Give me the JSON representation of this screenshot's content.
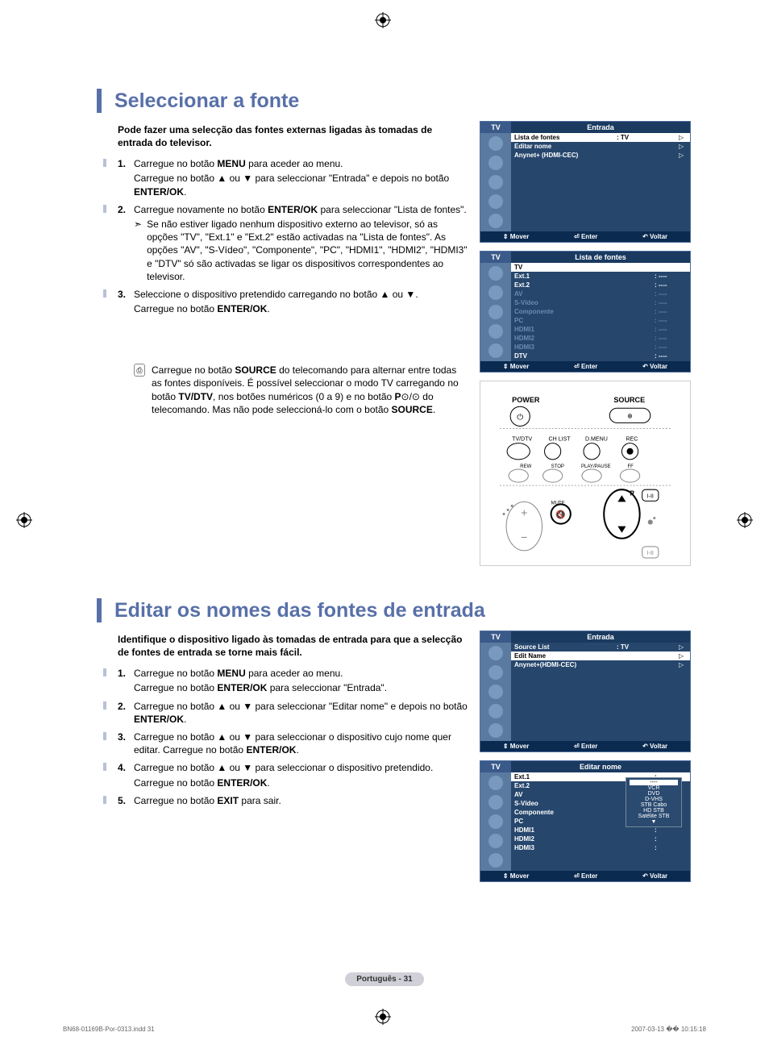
{
  "colors": {
    "heading": "#5870a8",
    "osd_bg": "#26466c",
    "osd_bar": "#1a3a60",
    "sidebar": "#5a7aa0"
  },
  "section1": {
    "title": "Seleccionar a fonte",
    "intro": "Pode fazer uma selecção das fontes externas ligadas às tomadas de entrada do televisor.",
    "steps": [
      {
        "n": "1.",
        "lines": [
          "Carregue no botão <b>MENU</b> para aceder ao menu.",
          "Carregue no botão ▲ ou ▼ para seleccionar \"Entrada\" e depois no botão <b>ENTER/OK</b>."
        ]
      },
      {
        "n": "2.",
        "lines": [
          "Carregue novamente no botão <b>ENTER/OK</b> para seleccionar \"Lista de fontes\"."
        ],
        "sub": "Se não estiver ligado nenhum dispositivo externo ao televisor, só as opções \"TV\", \"Ext.1\" e \"Ext.2\" estão activadas na \"Lista de fontes\". As opções \"AV\", \"S-Vídeo\", \"Componente\", \"PC\", \"HDMI1\", \"HDMI2\", \"HDMI3\" e \"DTV\" só são activadas se ligar os dispositivos correspondentes ao televisor."
      },
      {
        "n": "3.",
        "lines": [
          "Seleccione o dispositivo pretendido carregando no botão ▲ ou ▼.",
          "Carregue no botão <b>ENTER/OK</b>."
        ]
      }
    ],
    "tip": "Carregue no botão <b>SOURCE</b> do telecomando para alternar entre todas as fontes disponíveis. É possível seleccionar o modo TV carregando no botão <b>TV/DTV</b>, nos botões numéricos (0 a 9) e no botão <b>P</b>⊙/⊙ do telecomando. Mas não pode seleccioná-lo com o botão <b>SOURCE</b>."
  },
  "section2": {
    "title": "Editar os nomes das fontes de entrada",
    "intro": "Identifique o dispositivo ligado às tomadas de entrada para que a selecção de fontes de entrada se torne mais fácil.",
    "steps": [
      {
        "n": "1.",
        "lines": [
          "Carregue no botão <b>MENU</b> para aceder ao menu.",
          "Carregue no botão <b>ENTER/OK</b> para seleccionar \"Entrada\"."
        ]
      },
      {
        "n": "2.",
        "lines": [
          "Carregue no botão ▲ ou ▼ para seleccionar \"Editar nome\" e depois no botão <b>ENTER/OK</b>."
        ]
      },
      {
        "n": "3.",
        "lines": [
          "Carregue no botão ▲ ou ▼ para seleccionar o dispositivo cujo nome quer editar. Carregue no botão <b>ENTER/OK</b>."
        ]
      },
      {
        "n": "4.",
        "lines": [
          "Carregue no botão ▲ ou ▼ para seleccionar o dispositivo pretendido.",
          "Carregue no botão <b>ENTER/OK</b>."
        ]
      },
      {
        "n": "5.",
        "lines": [
          "Carregue no botão <b>EXIT</b> para sair."
        ]
      }
    ]
  },
  "osd1": {
    "tv": "TV",
    "title": "Entrada",
    "rows": [
      {
        "c1": "Lista de fontes",
        "c2": ": TV",
        "c3": "▷",
        "hl": true
      },
      {
        "c1": "Editar nome",
        "c2": "",
        "c3": "▷"
      },
      {
        "c1": "Anynet+ (HDMI-CEC)",
        "c2": "",
        "c3": "▷"
      }
    ],
    "footer": {
      "a": "⇕ Mover",
      "b": "⏎ Enter",
      "c": "↶ Voltar"
    }
  },
  "osd2": {
    "tv": "TV",
    "title": "Lista de fontes",
    "rows": [
      {
        "c1": "TV",
        "c2": "",
        "hl": true
      },
      {
        "c1": "Ext.1",
        "c2": ": ----"
      },
      {
        "c1": "Ext.2",
        "c2": ": ----"
      },
      {
        "c1": "AV",
        "c2": ": ----",
        "dim": true
      },
      {
        "c1": "S-Vídeo",
        "c2": ": ----",
        "dim": true
      },
      {
        "c1": "Componente",
        "c2": ": ----",
        "dim": true
      },
      {
        "c1": "PC",
        "c2": ": ----",
        "dim": true
      },
      {
        "c1": "HDMI1",
        "c2": ": ----",
        "dim": true
      },
      {
        "c1": "HDMI2",
        "c2": ": ----",
        "dim": true
      },
      {
        "c1": "HDMI3",
        "c2": ": ----",
        "dim": true
      },
      {
        "c1": "DTV",
        "c2": ": ----"
      }
    ],
    "footer": {
      "a": "⇕ Mover",
      "b": "⏎ Enter",
      "c": "↶ Voltar"
    }
  },
  "osd3": {
    "tv": "TV",
    "title": "Entrada",
    "rows": [
      {
        "c1": "Source List",
        "c2": ": TV",
        "c3": "▷"
      },
      {
        "c1": "Edit Name",
        "c2": "",
        "c3": "▷",
        "hl": true
      },
      {
        "c1": "Anynet+(HDMI-CEC)",
        "c2": "",
        "c3": "▷"
      }
    ],
    "footer": {
      "a": "⇕ Mover",
      "b": "⏎ Enter",
      "c": "↶ Voltar"
    }
  },
  "osd4": {
    "tv": "TV",
    "title": "Editar nome",
    "rows": [
      {
        "c1": "Ext.1",
        "c2": ":",
        "hl": true
      },
      {
        "c1": "Ext.2",
        "c2": ":"
      },
      {
        "c1": "AV",
        "c2": ":"
      },
      {
        "c1": "S-Vídeo",
        "c2": ":"
      },
      {
        "c1": "Componente",
        "c2": ":"
      },
      {
        "c1": "PC",
        "c2": ":"
      },
      {
        "c1": "HDMI1",
        "c2": ":"
      },
      {
        "c1": "HDMI2",
        "c2": ":"
      },
      {
        "c1": "HDMI3",
        "c2": ":"
      }
    ],
    "popup": [
      "----",
      "VCR",
      "DVD",
      "D-VHS",
      "STB Cabo",
      "HD STB",
      "Satélite STB",
      "▼"
    ],
    "footer": {
      "a": "⇕ Mover",
      "b": "⏎ Enter",
      "c": "↶ Voltar"
    }
  },
  "remote": {
    "labels": [
      "POWER",
      "SOURCE",
      "TV/DTV",
      "CH LIST",
      "D.MENU",
      "REC",
      "REW",
      "STOP",
      "PLAY/PAUSE",
      "FF",
      "MUTE",
      "P"
    ]
  },
  "pageNumber": "Português - 31",
  "docFooter": {
    "left": "BN68-01169B-Por-0313.indd   31",
    "right": "2007-03-13   �� 10:15:18"
  }
}
